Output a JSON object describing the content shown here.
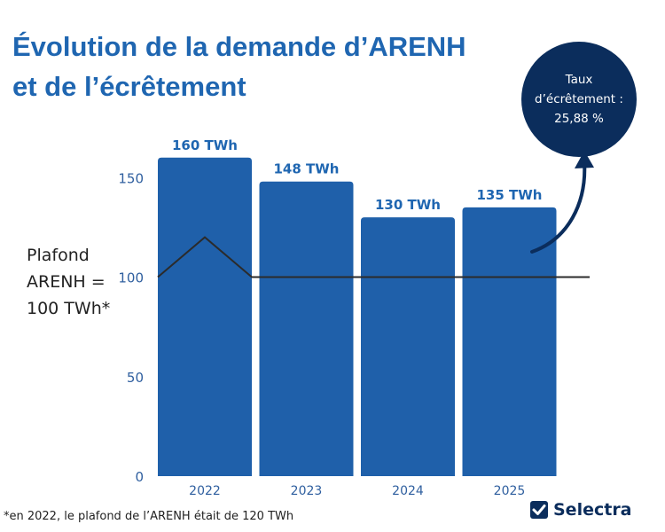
{
  "title_lines": [
    "Évolution de la demande d’ARENH",
    "et de l’écrêtement"
  ],
  "bubble_lines": [
    "Taux",
    "d’écrêtement :",
    "25,88 %"
  ],
  "plafond_lines": [
    "Plafond",
    "ARENH =",
    "100 TWh*"
  ],
  "footnote": "*en 2022, le plafond de l’ARENH était de 120 TWh",
  "brand": "Selectra",
  "colors": {
    "bar": "#1f60aa",
    "title": "#1f66b1",
    "bubble": "#0b2d5c",
    "line": "#2b2b2b",
    "tick": "#2f5f9f"
  },
  "chart_data": {
    "type": "bar",
    "categories": [
      "2022",
      "2023",
      "2024",
      "2025"
    ],
    "values": [
      160,
      148,
      130,
      135
    ],
    "data_labels": [
      "160 TWh",
      "148 TWh",
      "130 TWh",
      "135 TWh"
    ],
    "y_ticks": [
      0,
      50,
      100,
      150
    ],
    "ylim": [
      0,
      165
    ],
    "unit": "TWh",
    "grid": false,
    "cap_line": {
      "value": 100,
      "cap_2022": 120
    }
  }
}
